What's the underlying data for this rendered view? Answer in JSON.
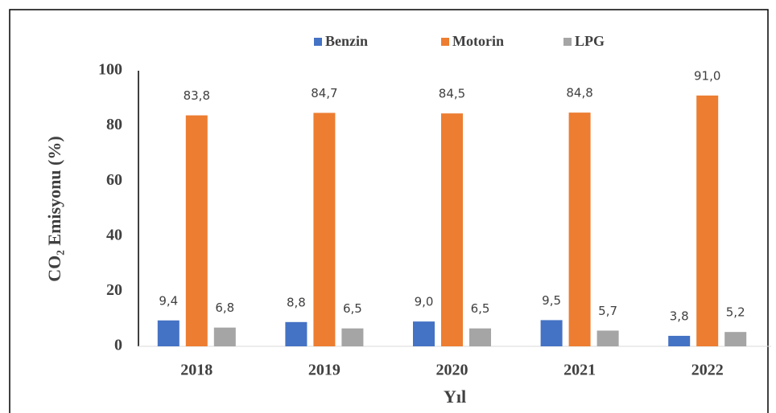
{
  "chart_data": {
    "type": "bar",
    "xlabel": "Yıl",
    "ylabel": "CO₂ Emisyonu  (%)",
    "categories": [
      "2018",
      "2019",
      "2020",
      "2021",
      "2022"
    ],
    "series": [
      {
        "name": "Benzin",
        "color": "#4472c4",
        "values": [
          9.4,
          8.8,
          9.0,
          9.5,
          3.8
        ],
        "value_labels": [
          "9,4",
          "8,8",
          "9,0",
          "9,5",
          "3,8"
        ]
      },
      {
        "name": "Motorin",
        "color": "#ed7d31",
        "values": [
          83.8,
          84.7,
          84.5,
          84.8,
          91.0
        ],
        "value_labels": [
          "83,8",
          "84,7",
          "84,5",
          "84,8",
          "91,0"
        ]
      },
      {
        "name": "LPG",
        "color": "#a5a5a5",
        "values": [
          6.8,
          6.5,
          6.5,
          5.7,
          5.2
        ],
        "value_labels": [
          "6,8",
          "6,5",
          "6,5",
          "5,7",
          "5,2"
        ]
      }
    ],
    "ylim": [
      0,
      100
    ],
    "yticks": [
      0,
      20,
      40,
      60,
      80,
      100
    ],
    "legend": "top"
  }
}
